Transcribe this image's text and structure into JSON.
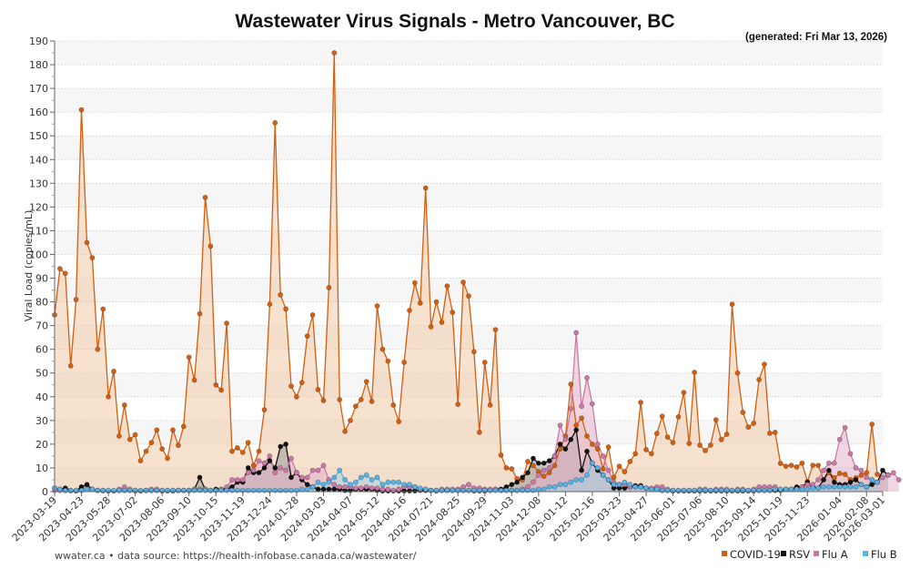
{
  "chart_data": {
    "type": "area",
    "title": "Wastewater Virus Signals - Metro Vancouver, BC",
    "subtitle": "(generated: Fri Mar 13, 2026)",
    "xlabel": "",
    "ylabel": "Viral Load (copies/mL)",
    "ylim": [
      0,
      190
    ],
    "yticks": [
      0,
      10,
      20,
      30,
      40,
      50,
      60,
      70,
      80,
      90,
      100,
      110,
      120,
      130,
      140,
      150,
      160,
      170,
      180,
      190
    ],
    "x_start": "2023-03-19",
    "x_end": "2026-03-01",
    "x_step_days": 7,
    "xtick_labels": [
      "2023-03-19",
      "2023-04-23",
      "2023-05-28",
      "2023-07-02",
      "2023-08-06",
      "2023-09-10",
      "2023-10-15",
      "2023-11-19",
      "2023-12-24",
      "2024-01-28",
      "2024-03-03",
      "2024-04-07",
      "2024-05-12",
      "2024-06-16",
      "2024-07-21",
      "2024-08-25",
      "2024-09-29",
      "2024-11-03",
      "2024-12-08",
      "2025-01-12",
      "2025-02-16",
      "2025-03-23",
      "2025-04-27",
      "2025-06-01",
      "2025-07-06",
      "2025-08-10",
      "2025-09-14",
      "2025-10-19",
      "2025-11-23",
      "2026-01-04",
      "2026-02-08",
      "2026-03-01"
    ],
    "grid": true,
    "legend_position": "bottom-right",
    "footer": "wwater.ca • data source: https://health-infobase.canada.ca/wastewater/",
    "series": [
      {
        "name": "COVID-19",
        "color": "#d35f0f",
        "fill": "#f0c8a8",
        "values": [
          74.5,
          94,
          92,
          53,
          81,
          161,
          105,
          98.6,
          60,
          77,
          40,
          50.7,
          23.4,
          36.5,
          22,
          24,
          13,
          17,
          20.7,
          26,
          18,
          14,
          26,
          19.5,
          27.5,
          56.7,
          47,
          75,
          124,
          103.5,
          45,
          42.8,
          71,
          17,
          18.5,
          16.5,
          20.7,
          11,
          17,
          34.5,
          79,
          155.5,
          83,
          77,
          44.5,
          40,
          46,
          65.6,
          74.5,
          43,
          38.4,
          86,
          185,
          38.8,
          25.4,
          30,
          36,
          38.8,
          46.4,
          38,
          78.3,
          60,
          55,
          36.5,
          29.5,
          54.5,
          76.4,
          88,
          79.5,
          128,
          69.5,
          80,
          71.4,
          86.7,
          75.6,
          36.8,
          88.3,
          82.5,
          59,
          25,
          54.5,
          36.5,
          68.3,
          15.4,
          10,
          9.6,
          5.4,
          5,
          12.7,
          11,
          8.4,
          6.5,
          8,
          11,
          18,
          23.4,
          45.3,
          28,
          31,
          23.4,
          20,
          18,
          9.6,
          18.8,
          6,
          10.7,
          8.4,
          12.7,
          16,
          37.6,
          17.7,
          16,
          24.5,
          31.8,
          23,
          20.7,
          31.5,
          41.8,
          20.3,
          50.3,
          19.6,
          17.3,
          19.6,
          30.3,
          21.9,
          24.2,
          79,
          50,
          33.4,
          27.2,
          28.8,
          47.2,
          53.7,
          24.6,
          25,
          11.9,
          10.7,
          11.1,
          10.4,
          12,
          4.2,
          11.1,
          11.1,
          5,
          8,
          5.8,
          7.7,
          7.3,
          5,
          5.8,
          6.9,
          8,
          28.4,
          7.3
        ]
      },
      {
        "name": "RSV",
        "color": "#111111",
        "fill": "#9a9a9a",
        "values": [
          1.5,
          1,
          1.5,
          0.5,
          0.3,
          2,
          3,
          1,
          0.5,
          0.5,
          0.3,
          0.3,
          0.5,
          0.5,
          0.5,
          0.3,
          0.3,
          0.5,
          0.5,
          0.5,
          0.3,
          0.3,
          0.3,
          0.5,
          0.5,
          0.5,
          1,
          6,
          1,
          0.5,
          1,
          1,
          1,
          2,
          4,
          4,
          10,
          8,
          8,
          10,
          13,
          10,
          19,
          20,
          6,
          8,
          5,
          3,
          2,
          1,
          1,
          1,
          1,
          1,
          0.5,
          0.5,
          1,
          1,
          1,
          1,
          0.5,
          0.3,
          0.3,
          0.3,
          0.3,
          0.3,
          0.3,
          0.3,
          0.5,
          0.5,
          0.5,
          0.3,
          0.5,
          0.5,
          0.5,
          0.5,
          0.5,
          0.5,
          0.3,
          0.3,
          0.3,
          0.5,
          1,
          1,
          2,
          3,
          4,
          6,
          8,
          14,
          12,
          12,
          13,
          15,
          20,
          18,
          22,
          26,
          9,
          17,
          12,
          9,
          7,
          5,
          1.5,
          1.5,
          1.5,
          2,
          2.5,
          2.5,
          1.5,
          1,
          1,
          0.5,
          0.5,
          0.3,
          0.3,
          0.3,
          0.3,
          0.3,
          0.3,
          0.3,
          0.3,
          0.3,
          0.3,
          0.3,
          0.3,
          0.3,
          0.3,
          0.3,
          0.3,
          0.5,
          0.5,
          0.5,
          0.5,
          0.5,
          1,
          1,
          2,
          2,
          4,
          2,
          1.5,
          5,
          9,
          4,
          3,
          3,
          4,
          5,
          3,
          2,
          3,
          4,
          9,
          7
        ]
      },
      {
        "name": "Flu A",
        "color": "#cc79a7",
        "fill": "#e3b3cc",
        "values": [
          0.5,
          0.5,
          0.5,
          0.3,
          0.3,
          0.5,
          1,
          1,
          0.5,
          0.3,
          0.3,
          0.3,
          1,
          2,
          1,
          0.5,
          0.3,
          0.5,
          1,
          1,
          0.5,
          0.5,
          0.5,
          0.5,
          0.5,
          0.5,
          1,
          1,
          1,
          0.5,
          0.5,
          1,
          2,
          5,
          5,
          5,
          8,
          9,
          13,
          12,
          15,
          8,
          10,
          9,
          14,
          8,
          6,
          6,
          9,
          9,
          11,
          5,
          3,
          2,
          2,
          2,
          1.5,
          1.5,
          2,
          1.5,
          1.5,
          1,
          1,
          0.5,
          1,
          2,
          2,
          2,
          1,
          1,
          0.5,
          0.5,
          1,
          1,
          1,
          1,
          2,
          3,
          1.5,
          1.5,
          1,
          1,
          1,
          0.5,
          0.5,
          0.5,
          0.5,
          1,
          2,
          4,
          7,
          9,
          10,
          15,
          28,
          22,
          35,
          67,
          36,
          48,
          37,
          20,
          15,
          9,
          4,
          3,
          3,
          2,
          2,
          2,
          1.5,
          1.5,
          2,
          2,
          1,
          0.5,
          0.5,
          0.5,
          0.5,
          0.5,
          1,
          1,
          0.5,
          1,
          1,
          1,
          0.5,
          1,
          1,
          0.5,
          1,
          2,
          2,
          2,
          2,
          1,
          1,
          1,
          1,
          2,
          3,
          3,
          5,
          9,
          12,
          12,
          22,
          27,
          16,
          10,
          9,
          6,
          5,
          4,
          6,
          7,
          8,
          5
        ]
      },
      {
        "name": "Flu B",
        "color": "#56b4e9",
        "fill": "#a9cfe0",
        "values": [
          1.5,
          1,
          0.5,
          0.5,
          0.5,
          0.5,
          1,
          1,
          0.5,
          0.5,
          0.5,
          0.5,
          0.5,
          0.5,
          0.5,
          0.5,
          0.5,
          0.5,
          0.5,
          0.5,
          0.5,
          0.5,
          0.5,
          0.5,
          0.5,
          0.5,
          0.5,
          0.5,
          0.5,
          0.5,
          0.5,
          0.5,
          0.5,
          0.5,
          0.5,
          0.5,
          0.5,
          0.5,
          0.5,
          0.5,
          0.5,
          0.5,
          0.5,
          0.5,
          0.5,
          0.5,
          1,
          1,
          2,
          4,
          3,
          4,
          6,
          9,
          5,
          3,
          4,
          6,
          7,
          5,
          6,
          3,
          4,
          4,
          4,
          3,
          3,
          2,
          1.5,
          1,
          0.5,
          0.5,
          0.5,
          0.5,
          0.5,
          0.5,
          0.5,
          0.5,
          0.5,
          0.5,
          0.5,
          0.5,
          0.5,
          0.5,
          0.5,
          0.5,
          0.5,
          0.5,
          0.5,
          0.5,
          1,
          1,
          2,
          2,
          3,
          3,
          4,
          5,
          5,
          7,
          12,
          10,
          7,
          5,
          3,
          3,
          4,
          3,
          2,
          2,
          1.5,
          1,
          1,
          0.5,
          0.5,
          0.5,
          0.5,
          0.5,
          0.5,
          0.5,
          0.5,
          0.5,
          0.5,
          0.5,
          0.5,
          0.5,
          0.5,
          0.5,
          0.5,
          0.5,
          0.5,
          0.5,
          0.5,
          0.5,
          1,
          1,
          1,
          1,
          1,
          1,
          1,
          1.5,
          1.5,
          2,
          2,
          2,
          2,
          2,
          2,
          2,
          3,
          2,
          5,
          4
        ]
      }
    ]
  }
}
